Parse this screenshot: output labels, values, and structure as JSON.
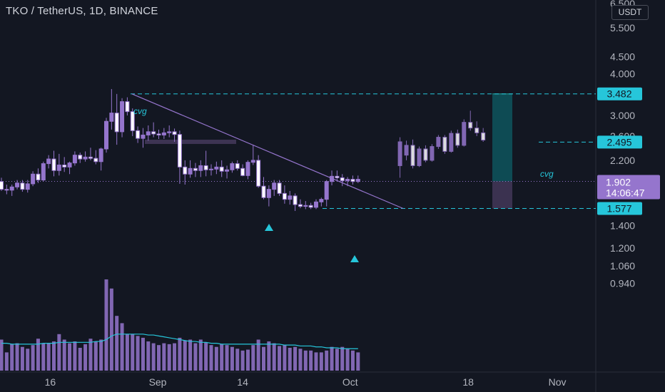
{
  "header": {
    "title": "TKO / TetherUS, 1D, BINANCE",
    "currency": "USDT"
  },
  "colors": {
    "background": "#131722",
    "candle": "#9575cd",
    "volume": "#9575cd",
    "volume_ma": "#26c6da",
    "annotation": "#26c6da",
    "trendline": "#9575cd",
    "target_zone": "#0e4e57",
    "stop_zone": "#3d3453"
  },
  "chart_data": {
    "type": "candlestick",
    "symbol": "TKO / TetherUS",
    "interval": "1D",
    "exchange": "BINANCE",
    "y_scale": "log",
    "ylim": [
      0.9,
      6.5
    ],
    "y_ticks": [
      "6.500",
      "5.500",
      "4.500",
      "4.000",
      "3.000",
      "2.600",
      "2.200",
      "1.400",
      "1.200",
      "1.060",
      "0.940"
    ],
    "x_ticks": [
      "16",
      "Sep",
      "14",
      "Oct",
      "18",
      "Nov"
    ],
    "current_price": "1.902",
    "countdown": "14:06:47",
    "price_labels": [
      "3.482",
      "2.495",
      "1.577"
    ],
    "annotations": [
      "cvg",
      "cvg"
    ],
    "candles": [
      [
        1.9,
        1.95,
        1.78,
        1.8
      ],
      [
        1.8,
        1.86,
        1.74,
        1.79
      ],
      [
        1.79,
        1.86,
        1.72,
        1.83
      ],
      [
        1.83,
        1.92,
        1.8,
        1.88
      ],
      [
        1.88,
        1.92,
        1.77,
        1.8
      ],
      [
        1.8,
        1.92,
        1.76,
        1.87
      ],
      [
        1.87,
        2.04,
        1.84,
        2.0
      ],
      [
        2.0,
        2.08,
        1.88,
        1.92
      ],
      [
        1.92,
        2.18,
        1.9,
        2.15
      ],
      [
        2.15,
        2.28,
        2.08,
        2.22
      ],
      [
        2.22,
        2.35,
        1.97,
        2.05
      ],
      [
        2.05,
        2.3,
        1.98,
        2.13
      ],
      [
        2.13,
        2.25,
        2.03,
        2.1
      ],
      [
        2.1,
        2.18,
        2.0,
        2.16
      ],
      [
        2.16,
        2.34,
        2.12,
        2.28
      ],
      [
        2.28,
        2.32,
        2.16,
        2.22
      ],
      [
        2.22,
        2.34,
        2.18,
        2.25
      ],
      [
        2.25,
        2.4,
        2.2,
        2.23
      ],
      [
        2.23,
        2.36,
        2.14,
        2.18
      ],
      [
        2.18,
        2.4,
        2.05,
        2.38
      ],
      [
        2.38,
        2.95,
        2.32,
        2.88
      ],
      [
        2.88,
        3.6,
        2.72,
        3.05
      ],
      [
        3.05,
        3.48,
        2.45,
        2.68
      ],
      [
        2.68,
        3.38,
        2.58,
        3.3
      ],
      [
        3.3,
        3.4,
        3.0,
        3.08
      ],
      [
        3.08,
        3.15,
        2.6,
        2.7
      ],
      [
        2.7,
        2.78,
        2.48,
        2.56
      ],
      [
        2.56,
        2.75,
        2.4,
        2.62
      ],
      [
        2.62,
        2.8,
        2.52,
        2.68
      ],
      [
        2.68,
        2.86,
        2.58,
        2.64
      ],
      [
        2.64,
        2.72,
        2.55,
        2.62
      ],
      [
        2.62,
        2.75,
        2.55,
        2.66
      ],
      [
        2.66,
        2.8,
        2.58,
        2.68
      ],
      [
        2.68,
        2.74,
        2.5,
        2.63
      ],
      [
        2.63,
        2.7,
        1.87,
        2.1
      ],
      [
        2.1,
        2.2,
        1.86,
        2.0
      ],
      [
        2.0,
        2.2,
        1.95,
        2.08
      ],
      [
        2.08,
        2.16,
        1.96,
        2.05
      ],
      [
        2.05,
        2.2,
        1.96,
        2.12
      ],
      [
        2.12,
        2.35,
        1.97,
        2.06
      ],
      [
        2.06,
        2.14,
        1.98,
        2.07
      ],
      [
        2.07,
        2.18,
        2.0,
        2.1
      ],
      [
        2.1,
        2.2,
        1.96,
        2.04
      ],
      [
        2.04,
        2.12,
        1.94,
        2.06
      ],
      [
        2.06,
        2.18,
        2.02,
        2.15
      ],
      [
        2.15,
        2.2,
        2.05,
        2.08
      ],
      [
        2.08,
        2.14,
        1.97,
        1.98
      ],
      [
        1.98,
        2.2,
        1.93,
        2.17
      ],
      [
        2.17,
        2.45,
        2.13,
        2.2
      ],
      [
        2.2,
        2.28,
        1.82,
        1.84
      ],
      [
        1.84,
        1.96,
        1.68,
        1.7
      ],
      [
        1.7,
        1.85,
        1.6,
        1.8
      ],
      [
        1.8,
        1.92,
        1.72,
        1.88
      ],
      [
        1.88,
        1.92,
        1.72,
        1.75
      ],
      [
        1.75,
        1.85,
        1.63,
        1.68
      ],
      [
        1.68,
        1.78,
        1.62,
        1.72
      ],
      [
        1.72,
        1.75,
        1.55,
        1.62
      ],
      [
        1.62,
        1.68,
        1.58,
        1.6
      ],
      [
        1.6,
        1.66,
        1.57,
        1.61
      ],
      [
        1.61,
        1.64,
        1.57,
        1.59
      ],
      [
        1.59,
        1.68,
        1.57,
        1.65
      ],
      [
        1.65,
        1.7,
        1.6,
        1.68
      ],
      [
        1.68,
        1.92,
        1.6,
        1.9
      ],
      [
        1.9,
        2.05,
        1.85,
        1.97
      ],
      [
        1.97,
        2.05,
        1.9,
        1.95
      ],
      [
        1.95,
        2.0,
        1.84,
        1.91
      ],
      [
        1.91,
        1.96,
        1.84,
        1.93
      ],
      [
        1.93,
        1.98,
        1.86,
        1.9
      ],
      [
        1.9,
        1.98,
        1.88,
        1.93
      ]
    ],
    "projection": [
      [
        2.12,
        2.58,
        1.95,
        2.5
      ],
      [
        2.28,
        2.52,
        2.2,
        2.44
      ],
      [
        2.44,
        2.54,
        2.08,
        2.12
      ],
      [
        2.12,
        2.42,
        2.1,
        2.38
      ],
      [
        2.38,
        2.44,
        2.17,
        2.2
      ],
      [
        2.2,
        2.46,
        2.18,
        2.42
      ],
      [
        2.42,
        2.62,
        2.38,
        2.58
      ],
      [
        2.58,
        2.62,
        2.3,
        2.34
      ],
      [
        2.34,
        2.7,
        2.32,
        2.65
      ],
      [
        2.65,
        2.72,
        2.4,
        2.44
      ],
      [
        2.44,
        2.92,
        2.42,
        2.86
      ],
      [
        2.86,
        3.1,
        2.7,
        2.75
      ],
      [
        2.75,
        2.88,
        2.6,
        2.66
      ],
      [
        2.66,
        2.75,
        2.5,
        2.53
      ]
    ],
    "volume": [
      0.34,
      0.2,
      0.29,
      0.3,
      0.26,
      0.24,
      0.28,
      0.35,
      0.3,
      0.3,
      0.32,
      0.4,
      0.34,
      0.3,
      0.32,
      0.25,
      0.29,
      0.35,
      0.32,
      0.34,
      1.0,
      0.9,
      0.6,
      0.52,
      0.4,
      0.4,
      0.38,
      0.36,
      0.32,
      0.3,
      0.28,
      0.3,
      0.29,
      0.3,
      0.36,
      0.33,
      0.34,
      0.3,
      0.34,
      0.31,
      0.28,
      0.26,
      0.29,
      0.28,
      0.26,
      0.24,
      0.22,
      0.23,
      0.28,
      0.34,
      0.26,
      0.32,
      0.3,
      0.27,
      0.28,
      0.25,
      0.26,
      0.24,
      0.22,
      0.22,
      0.2,
      0.2,
      0.22,
      0.26,
      0.24,
      0.26,
      0.24,
      0.22,
      0.2
    ],
    "volume_ma": [
      0.3,
      0.3,
      0.29,
      0.29,
      0.29,
      0.29,
      0.29,
      0.29,
      0.3,
      0.3,
      0.3,
      0.31,
      0.31,
      0.31,
      0.31,
      0.31,
      0.31,
      0.31,
      0.32,
      0.32,
      0.34,
      0.38,
      0.4,
      0.4,
      0.4,
      0.4,
      0.4,
      0.4,
      0.39,
      0.39,
      0.38,
      0.37,
      0.36,
      0.35,
      0.34,
      0.33,
      0.32,
      0.32,
      0.31,
      0.31,
      0.3,
      0.3,
      0.29,
      0.29,
      0.29,
      0.29,
      0.29,
      0.29,
      0.29,
      0.29,
      0.29,
      0.29,
      0.29,
      0.29,
      0.28,
      0.28,
      0.28,
      0.27,
      0.27,
      0.27,
      0.26,
      0.26,
      0.25,
      0.25,
      0.25,
      0.24,
      0.24,
      0.24,
      0.24
    ]
  }
}
